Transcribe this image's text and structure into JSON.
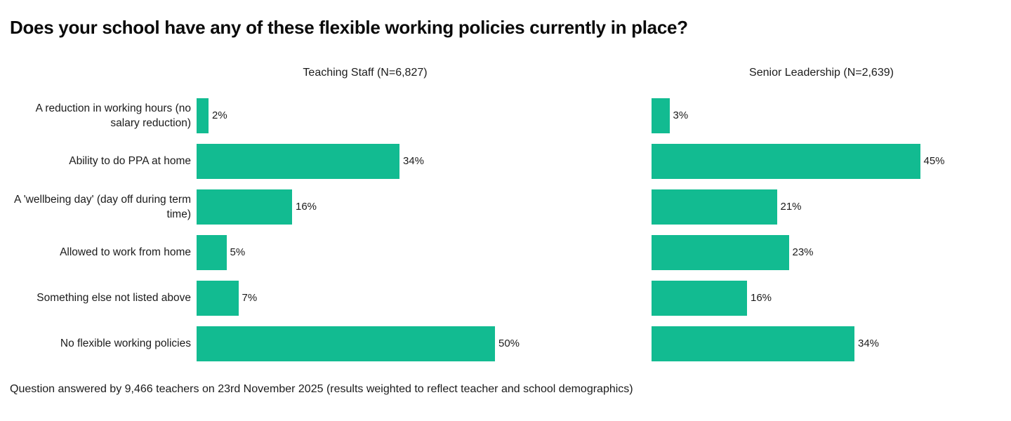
{
  "title": "Does your school have any of these flexible working policies currently in place?",
  "footnote": "Question answered by 9,466 teachers on 23rd November 2025 (results weighted to reflect teacher and school demographics)",
  "colors": {
    "bar": "#12BB91",
    "text": "#1b1b1b",
    "background": "#ffffff"
  },
  "chart_data": {
    "type": "bar",
    "orientation": "horizontal",
    "title": "Does your school have any of these flexible working policies currently in place?",
    "categories": [
      "A reduction in working hours (no salary reduction)",
      "Ability to do PPA at home",
      "A 'wellbeing day' (day off during term time)",
      "Allowed to work from home",
      "Something else not listed above",
      "No flexible working policies"
    ],
    "series": [
      {
        "name": "Teaching Staff (N=6,827)",
        "values": [
          2,
          34,
          16,
          5,
          7,
          50
        ]
      },
      {
        "name": "Senior Leadership (N=2,639)",
        "values": [
          3,
          45,
          21,
          23,
          16,
          34
        ]
      }
    ],
    "value_suffix": "%",
    "value_labels": true,
    "xlim": [
      0,
      50
    ],
    "grid": false,
    "axis_ticks": false,
    "legend_position": "panel-titles-above",
    "layout": "two-panels-shared-category-axis"
  }
}
